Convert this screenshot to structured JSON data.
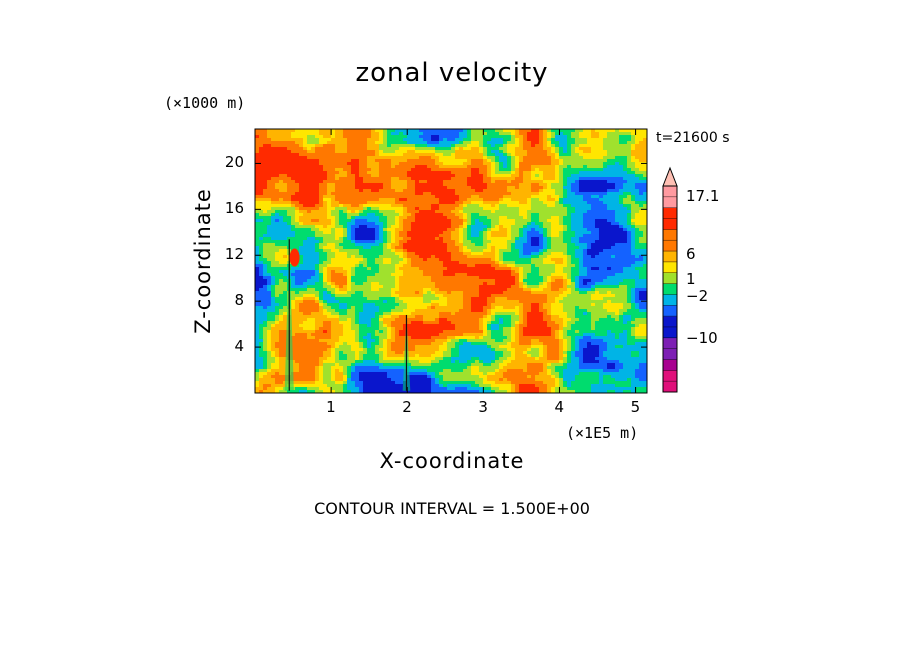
{
  "chart_data": {
    "type": "heatmap",
    "title": "zonal velocity",
    "xlabel": "X-coordinate",
    "ylabel": "Z-coordinate",
    "x_unit": "(×1E5 m)",
    "y_unit": "(×1000 m)",
    "time_label": "t=21600 s",
    "footer": "CONTOUR INTERVAL = 1.500E+00",
    "xlim": [
      0,
      5.15
    ],
    "ylim": [
      0,
      23
    ],
    "x_ticks": [
      1,
      2,
      3,
      4,
      5
    ],
    "y_ticks": [
      4,
      8,
      12,
      16,
      20
    ],
    "colorbar": {
      "labeled_ticks": [
        "17.1",
        "6",
        "1",
        "−2",
        "−10"
      ],
      "colors": [
        "#e0107a",
        "#e0107a",
        "#a80090",
        "#7d1fb4",
        "#7d1fb4",
        "#0a16cc",
        "#0a16cc",
        "#1462ff",
        "#00b4e6",
        "#00dc6e",
        "#a0e12d",
        "#ffe600",
        "#ffb400",
        "#ff7800",
        "#ff7800",
        "#ff2a00",
        "#ff2a00",
        "#ff9aa0",
        "#ff9aa0"
      ]
    }
  }
}
